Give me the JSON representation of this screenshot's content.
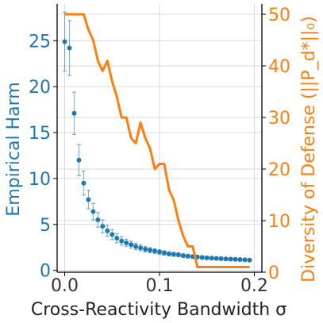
{
  "chart_data": {
    "type": "line",
    "xlabel": "Cross-Reactivity Bandwidth σ",
    "xlim": [
      -0.008,
      0.208
    ],
    "x_ticks": [
      {
        "value": 0.0,
        "label": "0.0"
      },
      {
        "value": 0.1,
        "label": "0.1"
      },
      {
        "value": 0.2,
        "label": "0.2"
      }
    ],
    "left_axis": {
      "label": "Empirical Harm",
      "color": "#1f77b4",
      "ylim": [
        -0.2,
        29
      ],
      "ticks": [
        {
          "value": 0,
          "label": "0"
        },
        {
          "value": 5,
          "label": "5"
        },
        {
          "value": 10,
          "label": "10"
        },
        {
          "value": 15,
          "label": "15"
        },
        {
          "value": 20,
          "label": "20"
        },
        {
          "value": 25,
          "label": "25"
        }
      ]
    },
    "right_axis": {
      "label": "Diversity of Defense (||P_d*||₀)",
      "color": "#ff7f0e",
      "ylim": [
        0,
        52
      ],
      "ticks": [
        {
          "value": 0,
          "label": "0"
        },
        {
          "value": 10,
          "label": "10"
        },
        {
          "value": 20,
          "label": "20"
        },
        {
          "value": 30,
          "label": "30"
        },
        {
          "value": 40,
          "label": "40"
        },
        {
          "value": 50,
          "label": "50"
        }
      ]
    },
    "grid": true,
    "series": [
      {
        "axis": "left",
        "kind": "scatter-errorbar",
        "color": "#1f77b4",
        "x": [
          0.0,
          0.005,
          0.01,
          0.015,
          0.02,
          0.025,
          0.03,
          0.035,
          0.04,
          0.045,
          0.05,
          0.055,
          0.06,
          0.065,
          0.07,
          0.075,
          0.08,
          0.085,
          0.09,
          0.095,
          0.1,
          0.105,
          0.11,
          0.115,
          0.12,
          0.125,
          0.13,
          0.135,
          0.14,
          0.145,
          0.15,
          0.155,
          0.16,
          0.165,
          0.17,
          0.175,
          0.18,
          0.185,
          0.19,
          0.195
        ],
        "y": [
          24.9,
          24.2,
          17.1,
          12.0,
          9.5,
          7.7,
          6.4,
          5.5,
          4.8,
          4.3,
          3.9,
          3.5,
          3.2,
          3.0,
          2.8,
          2.6,
          2.45,
          2.3,
          2.2,
          2.1,
          2.0,
          1.9,
          1.8,
          1.75,
          1.7,
          1.6,
          1.55,
          1.5,
          1.45,
          1.4,
          1.35,
          1.33,
          1.3,
          1.28,
          1.25,
          1.23,
          1.2,
          1.18,
          1.15,
          1.12
        ],
        "err": [
          3.2,
          3.0,
          2.3,
          1.7,
          1.3,
          1.0,
          0.9,
          0.8,
          0.7,
          0.6,
          0.55,
          0.5,
          0.45,
          0.4,
          0.38,
          0.35,
          0.33,
          0.3,
          0.28,
          0.27,
          0.25,
          0.24,
          0.23,
          0.22,
          0.21,
          0.2,
          0.2,
          0.19,
          0.18,
          0.18,
          0.17,
          0.17,
          0.16,
          0.16,
          0.15,
          0.15,
          0.15,
          0.14,
          0.14,
          0.14
        ]
      },
      {
        "axis": "right",
        "kind": "line",
        "color": "#ff7f0e",
        "x": [
          0.0,
          0.005,
          0.01,
          0.015,
          0.02,
          0.025,
          0.03,
          0.035,
          0.04,
          0.045,
          0.05,
          0.055,
          0.06,
          0.065,
          0.07,
          0.075,
          0.08,
          0.085,
          0.09,
          0.095,
          0.1,
          0.105,
          0.11,
          0.115,
          0.12,
          0.125,
          0.13,
          0.135,
          0.14,
          0.145,
          0.15,
          0.155,
          0.16,
          0.165,
          0.17,
          0.175,
          0.18,
          0.185,
          0.19,
          0.195
        ],
        "y": [
          50,
          50,
          50,
          50,
          50,
          47,
          45,
          41,
          39,
          41,
          37,
          34,
          30,
          30,
          26,
          25,
          29,
          26,
          24,
          20,
          21,
          21,
          16,
          14,
          10,
          7,
          5,
          5,
          1,
          1,
          1,
          1,
          1,
          1,
          1,
          1,
          1,
          1,
          1,
          1
        ]
      }
    ]
  }
}
